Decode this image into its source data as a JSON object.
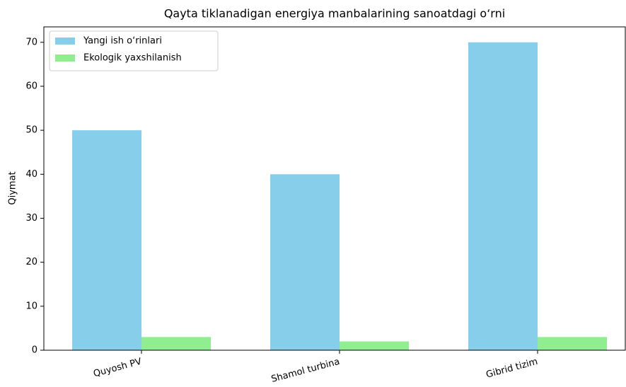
{
  "chart_data": {
    "type": "bar",
    "title": "Qayta tiklanadigan energiya manbalarining sanoatdagi o‘rni",
    "y_label": "Qiymat",
    "categories": [
      "Quyosh PV",
      "Shamol turbina",
      "Gibrid tizim"
    ],
    "series": [
      {
        "name": "Yangi ish o‘rinlari",
        "color": "#87ceeb",
        "values": [
          50,
          40,
          70
        ]
      },
      {
        "name": "Ekologik yaxshilanish",
        "color": "#90ee90",
        "values": [
          3,
          2,
          3
        ]
      }
    ],
    "ylim": [
      0,
      73.5
    ],
    "yticks": [
      0,
      10,
      20,
      30,
      40,
      50,
      60,
      70
    ],
    "legend": "upper left"
  }
}
